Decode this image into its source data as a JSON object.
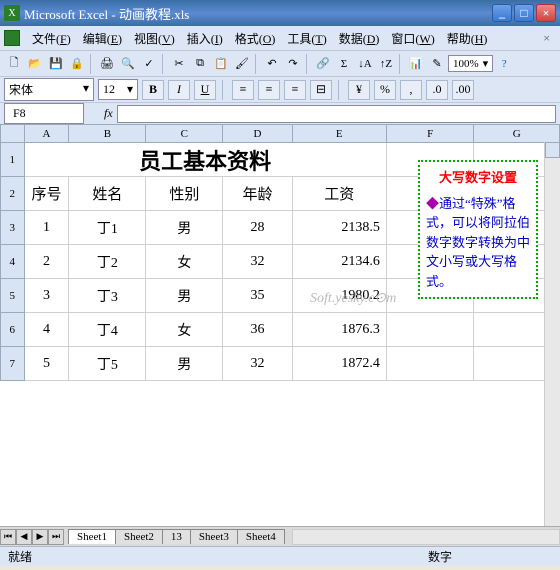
{
  "window": {
    "title": "Microsoft Excel - 动画教程.xls",
    "app_icon_letter": "X",
    "min": "_",
    "max": "□",
    "close": "×"
  },
  "menus": [
    {
      "label": "文件",
      "key": "F"
    },
    {
      "label": "编辑",
      "key": "E"
    },
    {
      "label": "视图",
      "key": "V"
    },
    {
      "label": "插入",
      "key": "I"
    },
    {
      "label": "格式",
      "key": "O"
    },
    {
      "label": "工具",
      "key": "T"
    },
    {
      "label": "数据",
      "key": "D"
    },
    {
      "label": "窗口",
      "key": "W"
    },
    {
      "label": "帮助",
      "key": "H"
    }
  ],
  "toolbar": {
    "zoom": "100%"
  },
  "format_bar": {
    "font": "宋体",
    "size": "12",
    "bold": "B",
    "italic": "I",
    "underline": "U"
  },
  "formula_bar": {
    "cell_ref": "F8",
    "fx": "fx",
    "value": ""
  },
  "columns": [
    "A",
    "B",
    "C",
    "D",
    "E",
    "F",
    "G"
  ],
  "sheet": {
    "title": "员工基本资料",
    "headers": [
      "序号",
      "姓名",
      "性别",
      "年龄",
      "工资"
    ],
    "rows": [
      {
        "n": "1",
        "name": "丁1",
        "sex": "男",
        "age": "28",
        "salary": "2138.5"
      },
      {
        "n": "2",
        "name": "丁2",
        "sex": "女",
        "age": "32",
        "salary": "2134.6"
      },
      {
        "n": "3",
        "name": "丁3",
        "sex": "男",
        "age": "35",
        "salary": "1980.2"
      },
      {
        "n": "4",
        "name": "丁4",
        "sex": "女",
        "age": "36",
        "salary": "1876.3"
      },
      {
        "n": "5",
        "name": "丁5",
        "sex": "男",
        "age": "32",
        "salary": "1872.4"
      }
    ],
    "row_numbers": [
      "1",
      "2",
      "3",
      "4",
      "5",
      "6",
      "7"
    ]
  },
  "callout": {
    "title": "大写数字设置",
    "body": "通过“特殊”格式，可以将阿拉伯数字数字转换为中文小写或大写格式。"
  },
  "watermark": "Soft.yesky.c⊙m",
  "tabs": [
    "Sheet1",
    "Sheet2",
    "13",
    "Sheet3",
    "Sheet4"
  ],
  "active_tab": 0,
  "status": {
    "left": "就绪",
    "right": "数字"
  },
  "colors": {
    "titlebar_bg": "#3a6ea5",
    "menubar_bg": "#dde6f5",
    "header_bg": "#d8e4f3",
    "callout_border": "#00aa00",
    "callout_title": "#ff0000",
    "callout_body": "#0000cc"
  }
}
